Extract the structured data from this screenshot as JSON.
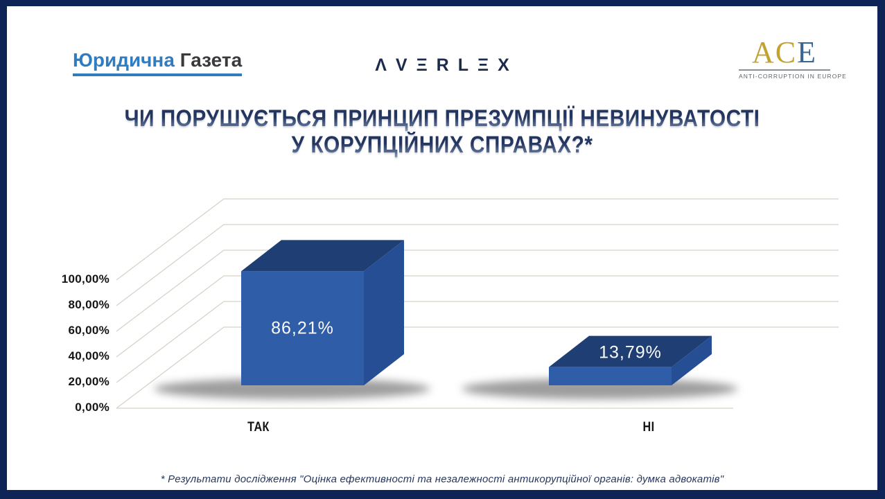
{
  "page": {
    "background": "#FFFFFF",
    "border_color": "#0E2356"
  },
  "logos": {
    "gazeta": {
      "word1": "Юридична",
      "word2": "Газета",
      "word1_color": "#2F7CC0",
      "word2_color": "#3A3A3D",
      "underline_color": "#2F7CC0"
    },
    "averlex": {
      "text": "ΛVΞRLΞX",
      "color": "#1B2B4B"
    },
    "ace": {
      "letters_gold": "AC",
      "letter_blue": "E",
      "caption": "ANTI-CORRUPTION IN EUROPE",
      "gold_color": "#C2A233",
      "blue_color": "#3A678F",
      "caption_color": "#5F6368"
    }
  },
  "title": {
    "line1": "ЧИ ПОРУШУЄТЬСЯ ПРИНЦИП ПРЕЗУМПЦІЇ НЕВИНУВАТОСТІ",
    "line2": "У КОРУПЦІЙНИХ СПРАВАХ?*",
    "color_top": "#22345E",
    "color_bottom": "#93A1BD"
  },
  "chart_data": {
    "type": "bar",
    "projection": "3d",
    "title": "ЧИ ПОРУШУЄТЬСЯ ПРИНЦИП ПРЕЗУМПЦІЇ НЕВИНУВАТОСТІ У КОРУПЦІЙНИХ СПРАВАХ?*",
    "categories": [
      "ТАК",
      "НІ"
    ],
    "values": [
      86.21,
      13.79
    ],
    "value_labels": [
      "86,21%",
      "13,79%"
    ],
    "ytick_labels": [
      "100,00%",
      "80,00%",
      "60,00%",
      "40,00%",
      "20,00%",
      "0,00%"
    ],
    "ytick_values": [
      100,
      80,
      60,
      40,
      20,
      0
    ],
    "ylim": [
      0,
      100
    ],
    "xlabel": "",
    "ylabel": "",
    "legend": "none",
    "grid": "on",
    "gridline_color": "#D8D2C8",
    "bar_colors": {
      "front": "#2F5DA8",
      "top": "#1E3E74",
      "side": "#264E94"
    },
    "value_label_color": "#FAFAFA",
    "shadow_color": "#4D4D4D"
  },
  "footnote": {
    "text": "* Результати дослідження \"Оцінка ефективності та незалежності антикорупційної органів: думка адвокатів\""
  }
}
